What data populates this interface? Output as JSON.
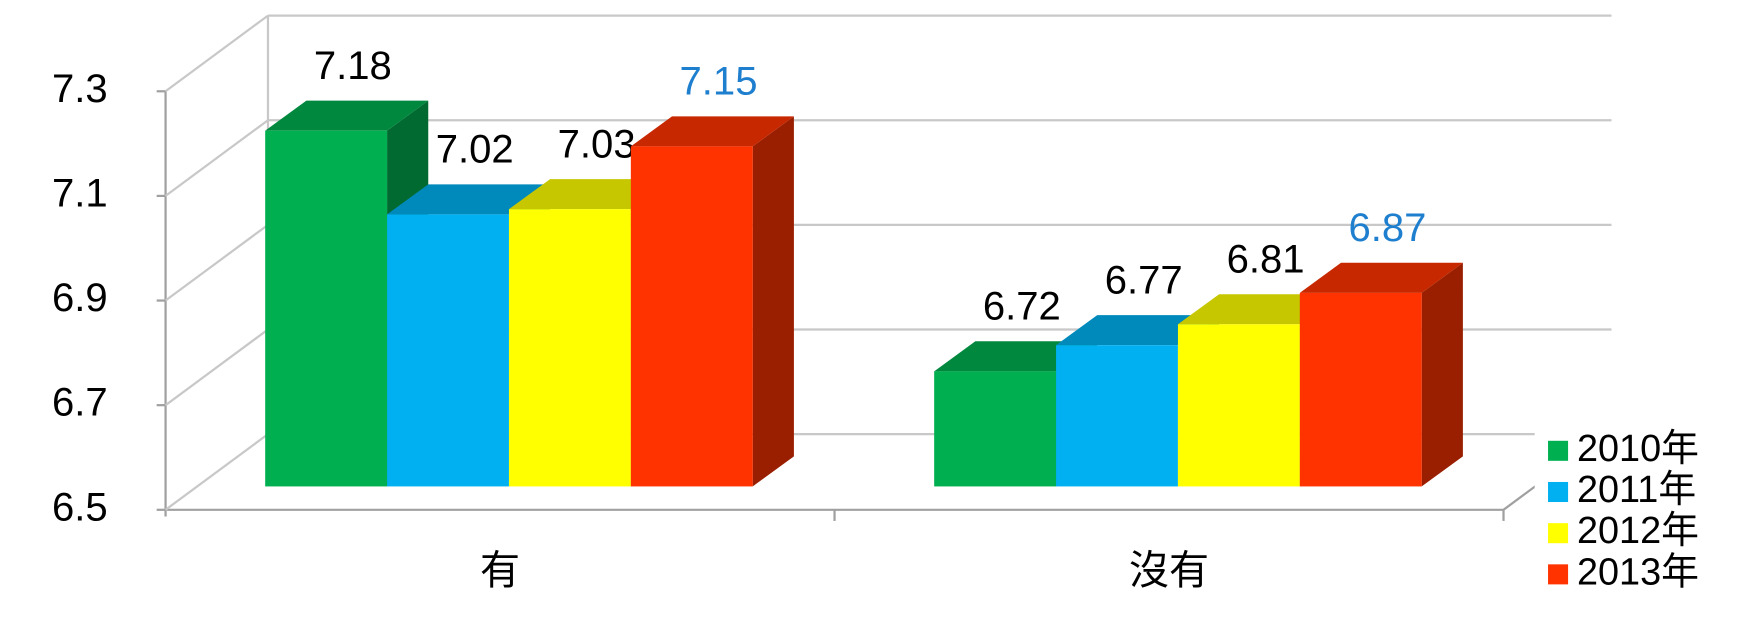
{
  "chart_data": {
    "type": "bar3d",
    "categories": [
      "有",
      "沒有"
    ],
    "series": [
      {
        "name": "2010年",
        "color": "#00b050",
        "label_color": "#000000",
        "values": [
          7.18,
          6.72
        ]
      },
      {
        "name": "2011年",
        "color": "#00b0f0",
        "label_color": "#000000",
        "values": [
          7.02,
          6.77
        ]
      },
      {
        "name": "2012年",
        "color": "#ffff00",
        "label_color": "#000000",
        "values": [
          7.03,
          6.81
        ]
      },
      {
        "name": "2013年",
        "color": "#ff3300",
        "label_color": "#1f7fcf",
        "values": [
          7.15,
          6.87
        ]
      }
    ],
    "ylim": [
      6.5,
      7.3
    ],
    "yticks": [
      6.5,
      6.7,
      6.9,
      7.1,
      7.3
    ],
    "grid": true,
    "legend": "bottom-right"
  }
}
